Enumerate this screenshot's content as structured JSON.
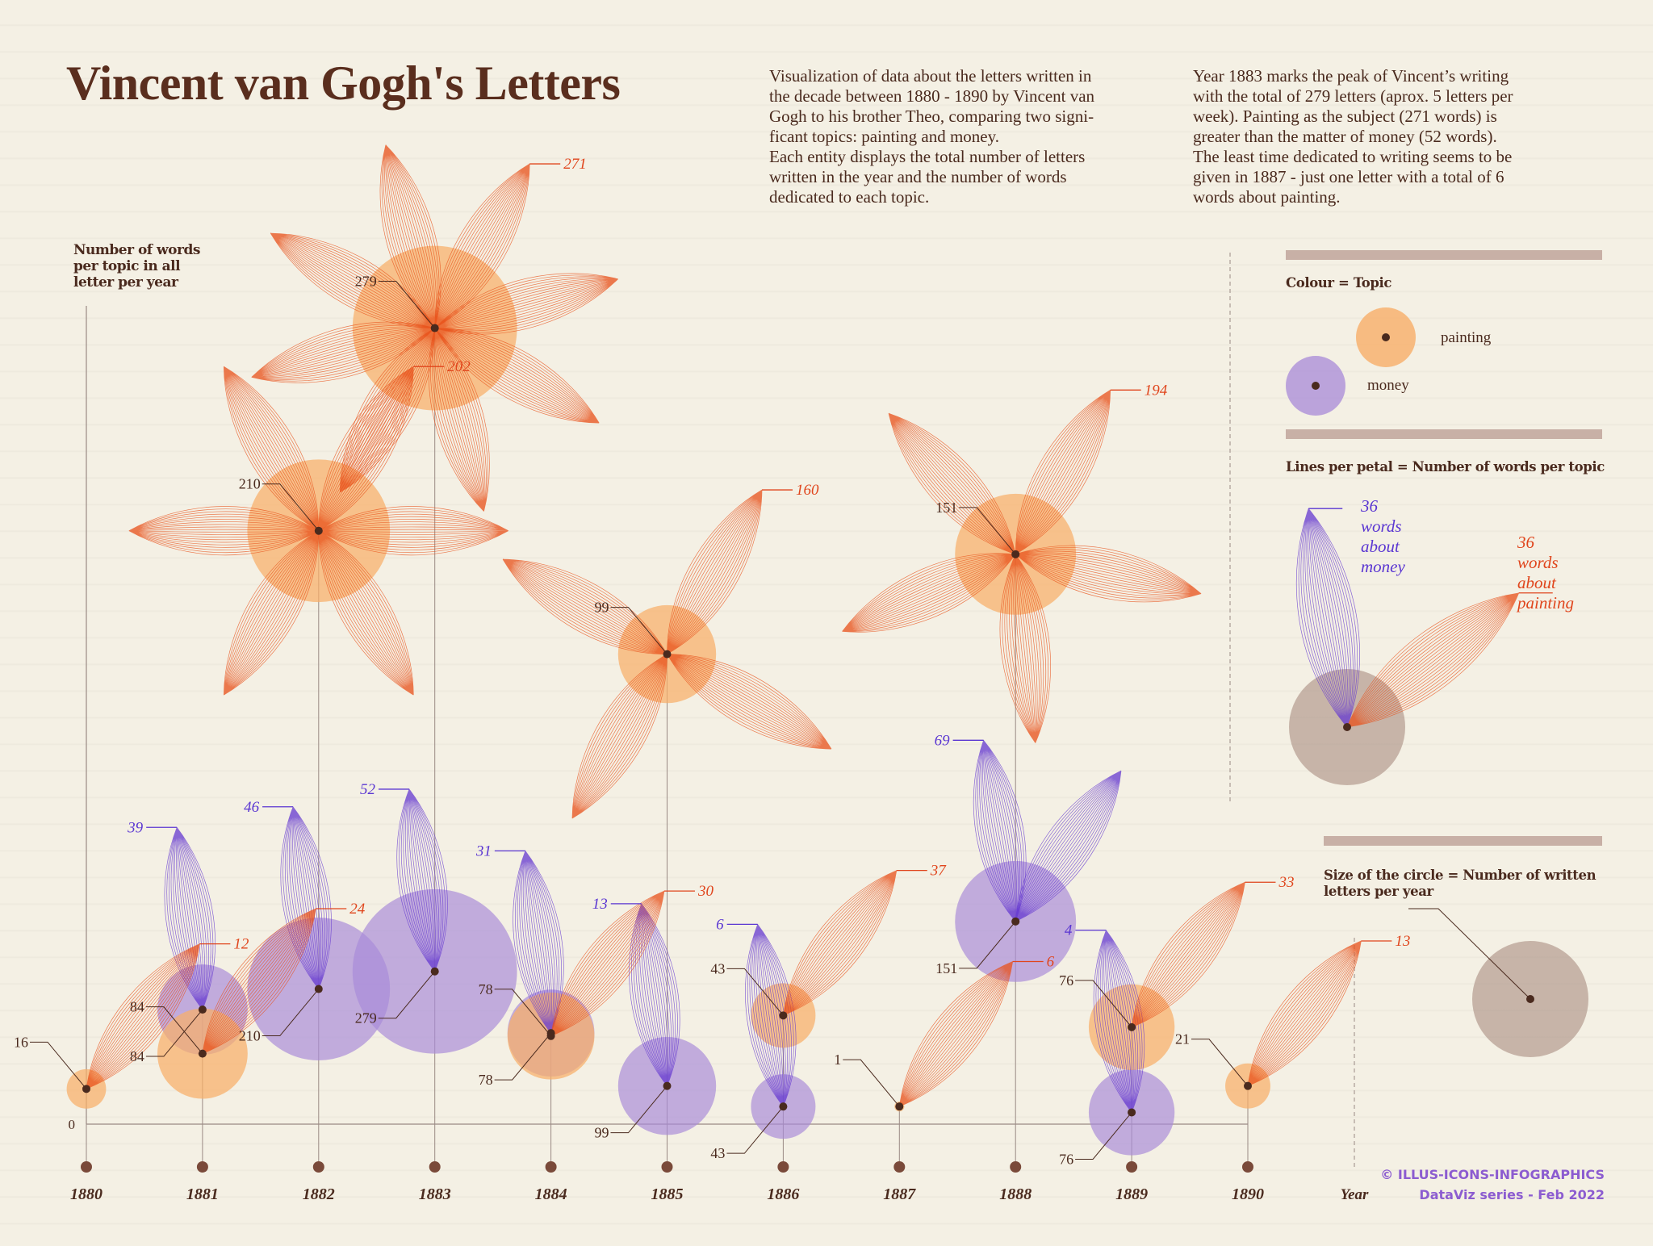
{
  "title": "Vincent van Gogh's Letters",
  "description_left": [
    "Visualization of data about the letters written in",
    "the decade between 1880 - 1890 by Vincent van",
    "Gogh to his brother Theo, comparing two signi-",
    "ficant topics: painting and money.",
    "Each entity displays the total number of letters",
    "written in the year and the number of words",
    "dedicated to each topic."
  ],
  "description_right": [
    "Year 1883 marks the peak of Vincent’s writing",
    "with the total of 279 letters (aprox. 5 letters per",
    "week). Painting as the subject (271 words) is",
    "greater than the matter of money (52 words).",
    "The least time dedicated to writing seems to be",
    "given in 1887 - just one letter with a total of 6",
    "words about painting."
  ],
  "legend": {
    "colour_heading": "Colour = Topic",
    "painting_label": "painting",
    "money_label": "money",
    "lines_heading": "Lines per petal = Number of words per topic",
    "money_note": [
      "36",
      "words",
      "about",
      "money"
    ],
    "painting_note": [
      "36",
      "words",
      "about",
      "painting"
    ],
    "size_heading": [
      "Size of the circle = Number of written",
      "letters per year"
    ]
  },
  "credit": [
    "© ILLUS-ICONS-INFOGRAPHICS",
    "DataViz series - Feb 2022"
  ],
  "colors": {
    "painting_circle": "#f8ae68",
    "painting_petal": "#e8501a",
    "painting_label": "#e0451c",
    "money_circle": "#a88ad8",
    "money_petal": "#6438d0",
    "money_label": "#5a36d2",
    "legend_grey": "#a88c80",
    "text": "#4a2a1e"
  },
  "chart_data": {
    "type": "scatter",
    "title": "Vincent van Gogh's Letters",
    "ylabel": [
      "Number of words",
      "per topic in all",
      "letter per year"
    ],
    "xlabel": "Year",
    "y_zero_label": "0",
    "ylim": [
      0,
      280
    ],
    "x": [
      "1880",
      "1881",
      "1882",
      "1883",
      "1884",
      "1885",
      "1886",
      "1887",
      "1888",
      "1889",
      "1890"
    ],
    "words_per_petal": 36,
    "series": [
      {
        "name": "painting",
        "letters": [
          16,
          84,
          210,
          279,
          78,
          99,
          43,
          1,
          151,
          76,
          21
        ],
        "words": [
          12,
          24,
          202,
          271,
          30,
          160,
          37,
          6,
          194,
          33,
          13
        ]
      },
      {
        "name": "money",
        "letters": [
          null,
          84,
          210,
          279,
          78,
          99,
          43,
          null,
          151,
          76,
          null
        ],
        "words": [
          null,
          39,
          46,
          52,
          31,
          13,
          6,
          null,
          69,
          4,
          null
        ]
      }
    ]
  }
}
